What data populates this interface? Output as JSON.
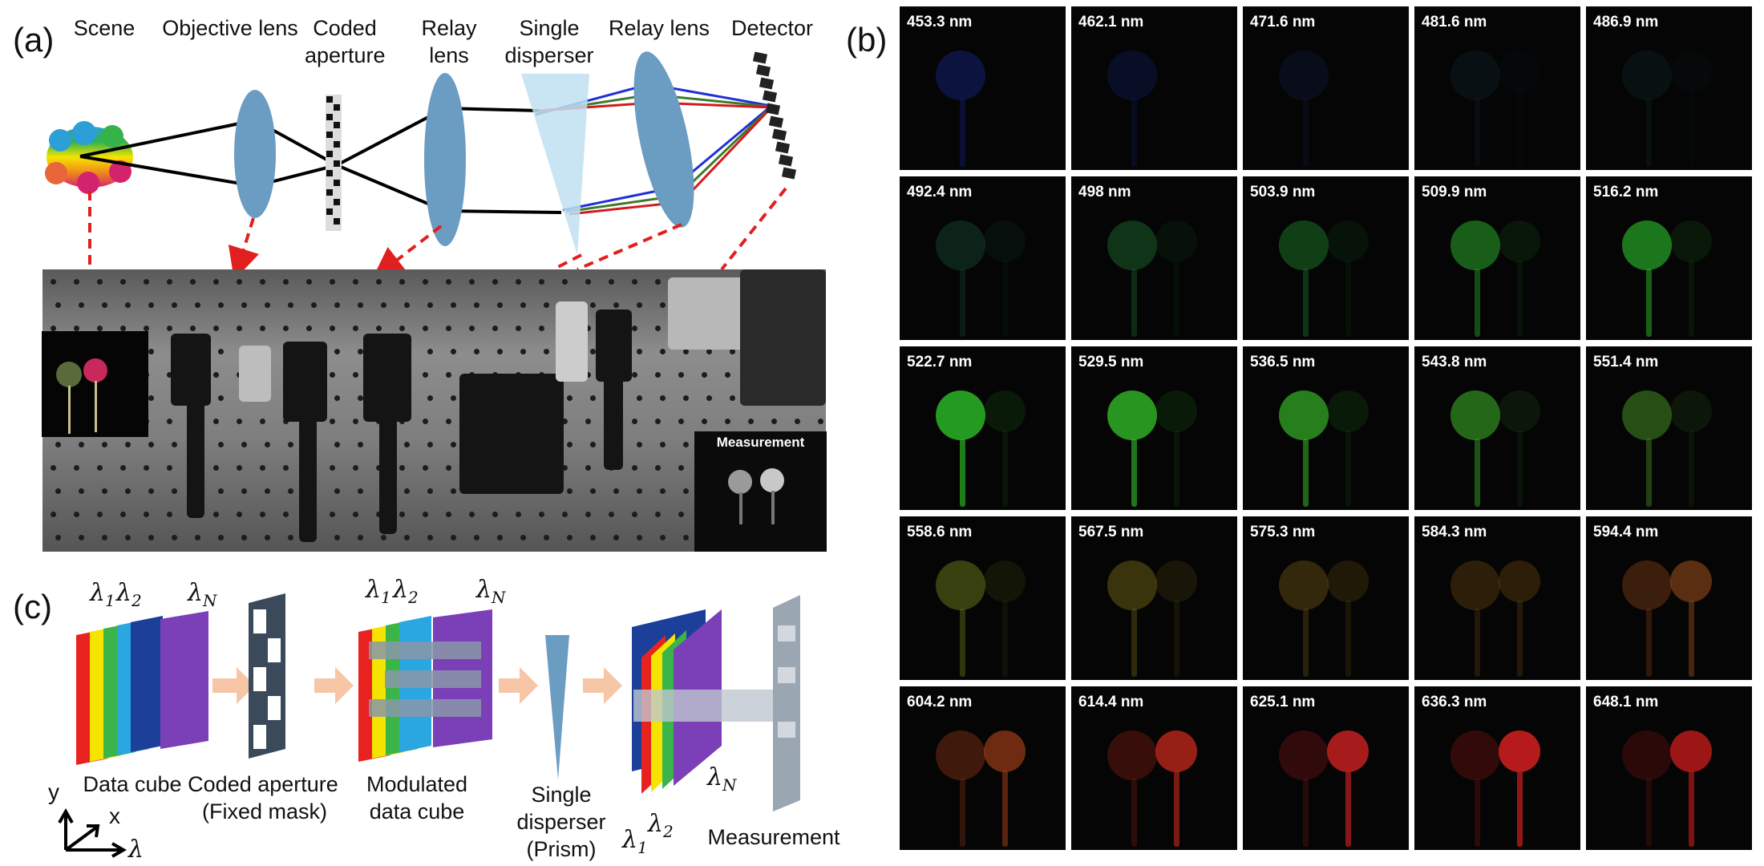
{
  "panel_a": {
    "letter": "(a)",
    "labels": {
      "scene": "Scene",
      "objective_lens": "Objective lens",
      "coded_aperture_1": "Coded",
      "coded_aperture_2": "aperture",
      "relay_lens_1_a": "Relay",
      "relay_lens_1_b": "lens",
      "single_disperser_1": "Single",
      "single_disperser_2": "disperser",
      "relay_lens_2": "Relay lens",
      "detector": "Detector"
    },
    "measurement_inset_title": "Measurement",
    "ray_colors": {
      "blue": "#1f2fd6",
      "green": "#3f7a2a",
      "red": "#d21b1b",
      "black": "#000000"
    },
    "lens_color": "#6b9cc2",
    "arrow_color": "#e0201e"
  },
  "panel_b": {
    "letter": "(b)",
    "tiles": [
      {
        "label": "453.3 nm",
        "color": "#1b2fa8",
        "left": 0.35,
        "right": 0.0
      },
      {
        "label": "462.1 nm",
        "color": "#1b33b0",
        "left": 0.2,
        "right": 0.0
      },
      {
        "label": "471.6 nm",
        "color": "#1c3d8c",
        "left": 0.15,
        "right": 0.0
      },
      {
        "label": "481.6 nm",
        "color": "#1a4f6c",
        "left": 0.15,
        "right": 0.05
      },
      {
        "label": "486.9 nm",
        "color": "#1b5a60",
        "left": 0.15,
        "right": 0.05
      },
      {
        "label": "492.4 nm",
        "color": "#1e6b4a",
        "left": 0.3,
        "right": 0.1
      },
      {
        "label": "498 nm",
        "color": "#1f7a35",
        "left": 0.4,
        "right": 0.1
      },
      {
        "label": "503.9 nm",
        "color": "#22882a",
        "left": 0.45,
        "right": 0.1
      },
      {
        "label": "509.9 nm",
        "color": "#249a26",
        "left": 0.6,
        "right": 0.12
      },
      {
        "label": "516.2 nm",
        "color": "#27a826",
        "left": 0.7,
        "right": 0.12
      },
      {
        "label": "522.7 nm",
        "color": "#2cb526",
        "left": 0.85,
        "right": 0.12
      },
      {
        "label": "529.5 nm",
        "color": "#2fb926",
        "left": 0.8,
        "right": 0.12
      },
      {
        "label": "536.5 nm",
        "color": "#34b226",
        "left": 0.7,
        "right": 0.12
      },
      {
        "label": "543.8 nm",
        "color": "#3aa826",
        "left": 0.6,
        "right": 0.12
      },
      {
        "label": "551.4 nm",
        "color": "#4a9a26",
        "left": 0.5,
        "right": 0.12
      },
      {
        "label": "558.6 nm",
        "color": "#7a8a1c",
        "left": 0.45,
        "right": 0.12
      },
      {
        "label": "567.5 nm",
        "color": "#8a7a18",
        "left": 0.4,
        "right": 0.15
      },
      {
        "label": "575.3 nm",
        "color": "#8a6a16",
        "left": 0.35,
        "right": 0.2
      },
      {
        "label": "584.3 nm",
        "color": "#8a5a14",
        "left": 0.3,
        "right": 0.3
      },
      {
        "label": "594.4 nm",
        "color": "#a0501a",
        "left": 0.35,
        "right": 0.55
      },
      {
        "label": "604.2 nm",
        "color": "#a8401a",
        "left": 0.35,
        "right": 0.65
      },
      {
        "label": "614.4 nm",
        "color": "#b0261a",
        "left": 0.3,
        "right": 0.85
      },
      {
        "label": "625.1 nm",
        "color": "#b81e1e",
        "left": 0.25,
        "right": 0.9
      },
      {
        "label": "636.3 nm",
        "color": "#c01c1c",
        "left": 0.25,
        "right": 0.95
      },
      {
        "label": "648.1 nm",
        "color": "#b81a1a",
        "left": 0.22,
        "right": 0.85
      }
    ]
  },
  "panel_c": {
    "letter": "(c)",
    "data_cube": "Data cube",
    "coded_aperture": "Coded aperture",
    "fixed_mask": "(Fixed mask)",
    "modulated_1": "Modulated",
    "modulated_2": "data cube",
    "single": "Single",
    "disperser": "disperser",
    "prism": "(Prism)",
    "measurement": "Measurement",
    "lambda_1": "λ",
    "lambda_sub_1": "1",
    "lambda_sub_2": "2",
    "lambda_sub_n": "N",
    "axis_y": "y",
    "axis_x": "x",
    "axis_lambda": "λ",
    "spectrum_colors": [
      "#e8231f",
      "#f5e400",
      "#f08a1c",
      "#3bb54a",
      "#2aa7e0",
      "#1c3f9a",
      "#7b3fb8"
    ]
  }
}
